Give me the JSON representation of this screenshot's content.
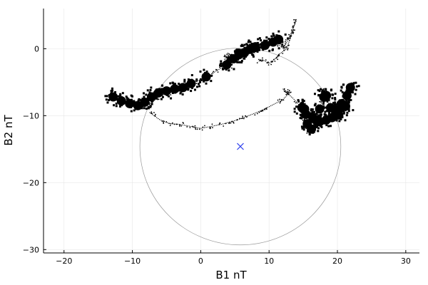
{
  "chart_data": {
    "type": "scatter",
    "title": "",
    "xlabel": "B1 nT",
    "ylabel": "B2 nT",
    "xlim": [
      -23,
      32
    ],
    "ylim": [
      -30.5,
      6
    ],
    "grid": true,
    "legend": "none",
    "x_ticks": [
      -20,
      -10,
      0,
      10,
      20,
      30
    ],
    "x_tick_labels": [
      "−20",
      "−10",
      "0",
      "10",
      "20",
      "30"
    ],
    "y_ticks": [
      0,
      -10,
      -20,
      -30
    ],
    "y_tick_labels": [
      "0",
      "−10",
      "−20",
      "−30"
    ],
    "series": [
      {
        "kind": "trajectory",
        "color": "#000000",
        "path": [
          [
            -13,
            -6.8
          ],
          [
            -12,
            -7.6
          ],
          [
            -10.5,
            -8.3
          ],
          [
            -9,
            -8.8
          ],
          [
            -7.5,
            -8.4
          ],
          [
            -6,
            -7.0
          ],
          [
            -4.5,
            -6.6
          ],
          [
            -3,
            -6.0
          ],
          [
            -1.5,
            -5.3
          ],
          [
            0,
            -4.6
          ],
          [
            1.5,
            -3.8
          ],
          [
            2.8,
            -3.0
          ],
          [
            3.6,
            -2.6
          ],
          [
            4.6,
            -2.3
          ],
          [
            4.2,
            -2.8
          ],
          [
            3.8,
            -2.0
          ],
          [
            4.5,
            -1.2
          ],
          [
            4.0,
            -0.6
          ],
          [
            3.5,
            -1.6
          ],
          [
            4.8,
            -1.8
          ],
          [
            5.5,
            -1.0
          ],
          [
            6.2,
            -0.5
          ],
          [
            7.0,
            -0.2
          ],
          [
            7.8,
            0.2
          ],
          [
            8.6,
            0.6
          ],
          [
            9.2,
            0.2
          ],
          [
            10.0,
            0.8
          ],
          [
            10.8,
            1.2
          ],
          [
            11.5,
            1.6
          ],
          [
            11.8,
            1.0
          ],
          [
            11.2,
            0.6
          ],
          [
            12.2,
            0.2
          ],
          [
            13.0,
            1.8
          ],
          [
            13.5,
            3.0
          ],
          [
            14.0,
            4.4
          ],
          [
            13.2,
            2.0
          ],
          [
            12.6,
            0.0
          ],
          [
            11.5,
            -0.8
          ],
          [
            10.8,
            -1.6
          ],
          [
            10.0,
            -2.2
          ],
          [
            9.0,
            -1.6
          ],
          [
            8.4,
            -1.9
          ]
        ],
        "dense": [
          [
            -12.8,
            -7.2
          ],
          [
            -11.6,
            -7.8
          ],
          [
            -10.4,
            -8.2
          ],
          [
            -9.2,
            -8.5
          ],
          [
            -8.2,
            -8.0
          ],
          [
            -7.2,
            -7.2
          ],
          [
            -6.2,
            -6.6
          ],
          [
            -5.0,
            -6.3
          ],
          [
            -3.8,
            -6.0
          ],
          [
            -2.6,
            -5.8
          ],
          [
            -1.4,
            -5.2
          ],
          [
            0.8,
            -4.2
          ],
          [
            3.8,
            -2.4
          ],
          [
            4.8,
            -1.5
          ],
          [
            5.6,
            -0.9
          ],
          [
            6.4,
            -0.6
          ],
          [
            7.2,
            -0.1
          ],
          [
            8.0,
            0.3
          ],
          [
            9.4,
            0.5
          ],
          [
            10.6,
            1.0
          ],
          [
            11.4,
            1.4
          ]
        ]
      },
      {
        "kind": "trajectory",
        "color": "#000000",
        "path": [
          [
            -7.5,
            -9.5
          ],
          [
            -6.0,
            -10.6
          ],
          [
            -4.5,
            -11.2
          ],
          [
            -3.0,
            -11.3
          ],
          [
            -1.5,
            -11.6
          ],
          [
            0.0,
            -11.9
          ],
          [
            1.5,
            -11.6
          ],
          [
            3.0,
            -11.3
          ],
          [
            4.5,
            -10.9
          ],
          [
            6.0,
            -10.4
          ],
          [
            7.5,
            -9.8
          ],
          [
            9.0,
            -9.2
          ],
          [
            10.5,
            -8.4
          ],
          [
            12.0,
            -7.6
          ],
          [
            13.0,
            -6.6
          ],
          [
            12.0,
            -6.0
          ],
          [
            13.5,
            -7.4
          ],
          [
            14.5,
            -8.5
          ],
          [
            15.5,
            -9.4
          ],
          [
            15.0,
            -11.0
          ],
          [
            15.8,
            -12.6
          ],
          [
            16.5,
            -11.4
          ],
          [
            17.2,
            -9.6
          ],
          [
            17.8,
            -7.6
          ],
          [
            18.2,
            -6.2
          ],
          [
            18.6,
            -8.0
          ],
          [
            19.5,
            -9.4
          ],
          [
            20.5,
            -8.6
          ],
          [
            21.2,
            -7.6
          ],
          [
            21.8,
            -6.4
          ],
          [
            22.2,
            -5.0
          ],
          [
            21.6,
            -8.8
          ],
          [
            20.8,
            -9.8
          ],
          [
            19.8,
            -10.4
          ],
          [
            18.8,
            -10.0
          ],
          [
            18.0,
            -11.2
          ],
          [
            17.0,
            -10.8
          ],
          [
            16.0,
            -10.0
          ]
        ],
        "dense": [
          [
            14.8,
            -8.8
          ],
          [
            15.4,
            -9.8
          ],
          [
            15.6,
            -11.2
          ],
          [
            16.2,
            -12.0
          ],
          [
            16.8,
            -10.6
          ],
          [
            17.4,
            -9.0
          ],
          [
            18.0,
            -7.2
          ],
          [
            18.4,
            -7.0
          ],
          [
            19.0,
            -8.8
          ],
          [
            19.8,
            -9.2
          ],
          [
            20.6,
            -8.2
          ],
          [
            21.4,
            -7.0
          ],
          [
            21.9,
            -5.8
          ],
          [
            21.2,
            -8.6
          ],
          [
            20.2,
            -9.9
          ],
          [
            19.2,
            -10.3
          ],
          [
            18.4,
            -10.6
          ],
          [
            17.4,
            -10.9
          ],
          [
            16.4,
            -10.3
          ],
          [
            15.2,
            -9.0
          ]
        ]
      }
    ],
    "circle": {
      "center": [
        5.8,
        -14.6
      ],
      "radius": 14.7,
      "color": "#999999"
    },
    "marker": {
      "x": 5.8,
      "y": -14.6,
      "shape": "cross",
      "color": "#3344ee"
    }
  }
}
